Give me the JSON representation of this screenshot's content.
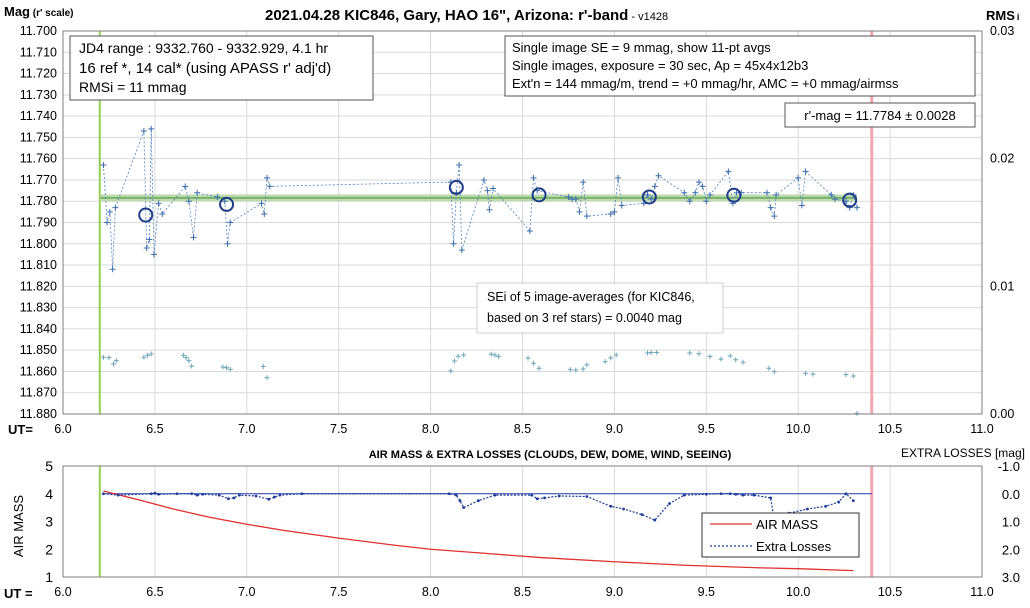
{
  "top": {
    "title_main": "2021.04.28 KIC846, Gary, HAO 16\", Arizona: r'-band",
    "title_suffix": " - v1428",
    "ylabel_left_main": "Mag",
    "ylabel_left_sub": " (r' scale)",
    "ylabel_right_main": "RMS",
    "ylabel_right_sub": "i",
    "xlabel": "UT=",
    "box_left": [
      "JD4 range : 9332.760 - 9332.929,  4.1  hr",
      "16 ref *, 14 cal* (using APASS r' adj'd)",
      "RMSi = 11 mmag"
    ],
    "box_right": [
      "Single image SE = 9 mmag, show  11-pt avgs",
      "Single images, exposure = 30 sec, Ap = 45x4x12b3",
      "Ext'n = 144 mmag/m, trend =  +0 mmag/hr, AMC = +0 mmag/airmss"
    ],
    "box_mag": "r'-mag = 11.7784 ± 0.0028",
    "box_sei": [
      "SEi of 5 image-averages (for KIC846,",
      "based on 3 ref stars) = 0.0040 mag"
    ]
  },
  "bottom": {
    "title": "AIR MASS & EXTRA LOSSES (CLOUDS, DEW, DOME, WIND, SEEING)",
    "ylabel_left": "AIR MASS",
    "ylabel_right": "EXTRA LOSSES [mag]",
    "xlabel": "UT ="
  },
  "colors": {
    "points": "#4f81bd",
    "avg": "#1f3c88",
    "mean_line": "#77b36a",
    "start_line": "#92d050",
    "end_line": "#f4a7b0",
    "airmass": "#e03030",
    "losses": "#1f3c9c",
    "rms_points": "#70a6b8",
    "grid": "#d9d9d9"
  },
  "chart_data": [
    {
      "type": "scatter",
      "title": "2021.04.28 KIC846, Gary, HAO 16\", Arizona: r'-band",
      "xlabel": "UT=",
      "ylabel": "Mag (r' scale)",
      "y2label": "RMSi",
      "xlim": [
        6.0,
        11.0
      ],
      "ylim": [
        11.88,
        11.7
      ],
      "y2lim": [
        0.0,
        0.03
      ],
      "xticks": [
        "6.0",
        "6.5",
        "7.0",
        "7.5",
        "8.0",
        "8.5",
        "9.0",
        "9.5",
        "10.0",
        "10.5",
        "11.0"
      ],
      "yticks": [
        "11.700",
        "11.710",
        "11.720",
        "11.730",
        "11.740",
        "11.750",
        "11.760",
        "11.770",
        "11.780",
        "11.790",
        "11.800",
        "11.810",
        "11.820",
        "11.830",
        "11.840",
        "11.850",
        "11.860",
        "11.870",
        "11.880"
      ],
      "y2ticks": [
        "0.03",
        "0.02",
        "0.01",
        "0.00"
      ],
      "start_ut": 6.2,
      "end_ut": 10.4,
      "mean_mag": 11.7784,
      "series": [
        {
          "name": "single images",
          "points": [
            [
              6.22,
              11.763
            ],
            [
              6.24,
              11.79
            ],
            [
              6.255,
              11.785
            ],
            [
              6.27,
              11.812
            ],
            [
              6.285,
              11.783
            ],
            [
              6.44,
              11.747
            ],
            [
              6.455,
              11.802
            ],
            [
              6.47,
              11.798
            ],
            [
              6.48,
              11.746
            ],
            [
              6.495,
              11.805
            ],
            [
              6.52,
              11.781
            ],
            [
              6.54,
              11.786
            ],
            [
              6.665,
              11.773
            ],
            [
              6.685,
              11.78
            ],
            [
              6.71,
              11.797
            ],
            [
              6.73,
              11.776
            ],
            [
              6.84,
              11.778
            ],
            [
              6.88,
              11.78
            ],
            [
              6.895,
              11.8
            ],
            [
              6.91,
              11.79
            ],
            [
              7.08,
              11.781
            ],
            [
              7.095,
              11.786
            ],
            [
              7.11,
              11.769
            ],
            [
              7.125,
              11.773
            ],
            [
              8.11,
              11.771
            ],
            [
              8.125,
              11.8
            ],
            [
              8.14,
              11.776
            ],
            [
              8.155,
              11.763
            ],
            [
              8.17,
              11.803
            ],
            [
              8.29,
              11.77
            ],
            [
              8.31,
              11.775
            ],
            [
              8.32,
              11.784
            ],
            [
              8.34,
              11.774
            ],
            [
              8.54,
              11.794
            ],
            [
              8.56,
              11.769
            ],
            [
              8.58,
              11.775
            ],
            [
              8.75,
              11.778
            ],
            [
              8.77,
              11.779
            ],
            [
              8.79,
              11.779
            ],
            [
              8.81,
              11.785
            ],
            [
              8.83,
              11.771
            ],
            [
              8.85,
              11.787
            ],
            [
              8.98,
              11.786
            ],
            [
              9.0,
              11.785
            ],
            [
              9.02,
              11.769
            ],
            [
              9.04,
              11.782
            ],
            [
              9.16,
              11.781
            ],
            [
              9.18,
              11.777
            ],
            [
              9.2,
              11.779
            ],
            [
              9.22,
              11.773
            ],
            [
              9.24,
              11.768
            ],
            [
              9.38,
              11.776
            ],
            [
              9.41,
              11.78
            ],
            [
              9.44,
              11.776
            ],
            [
              9.46,
              11.771
            ],
            [
              9.48,
              11.773
            ],
            [
              9.5,
              11.78
            ],
            [
              9.52,
              11.777
            ],
            [
              9.62,
              11.766
            ],
            [
              9.645,
              11.781
            ],
            [
              9.665,
              11.776
            ],
            [
              9.69,
              11.776
            ],
            [
              9.83,
              11.776
            ],
            [
              9.85,
              11.783
            ],
            [
              9.87,
              11.787
            ],
            [
              9.88,
              11.777
            ],
            [
              10.0,
              11.769
            ],
            [
              10.02,
              11.782
            ],
            [
              10.04,
              11.766
            ],
            [
              10.18,
              11.777
            ],
            [
              10.2,
              11.779
            ],
            [
              10.26,
              11.78
            ],
            [
              10.28,
              11.783
            ],
            [
              10.3,
              11.777
            ],
            [
              10.32,
              11.783
            ]
          ]
        },
        {
          "name": "11-pt avgs",
          "points": [
            [
              6.45,
              11.7865
            ],
            [
              6.89,
              11.7815
            ],
            [
              8.14,
              11.7735
            ],
            [
              8.59,
              11.777
            ],
            [
              9.19,
              11.778
            ],
            [
              9.65,
              11.7772
            ],
            [
              10.28,
              11.7795
            ]
          ]
        },
        {
          "name": "RMSi",
          "points": [
            [
              6.22,
              0.00445
            ],
            [
              6.25,
              0.00442
            ],
            [
              6.275,
              0.00392
            ],
            [
              6.29,
              0.00418
            ],
            [
              6.44,
              0.00445
            ],
            [
              6.46,
              0.0046
            ],
            [
              6.48,
              0.0047
            ],
            [
              6.655,
              0.0046
            ],
            [
              6.67,
              0.00442
            ],
            [
              6.685,
              0.00418
            ],
            [
              6.7,
              0.00375
            ],
            [
              6.87,
              0.00368
            ],
            [
              6.89,
              0.00362
            ],
            [
              6.91,
              0.0035
            ],
            [
              7.09,
              0.00372
            ],
            [
              7.11,
              0.00285
            ],
            [
              8.11,
              0.00338
            ],
            [
              8.13,
              0.00415
            ],
            [
              8.15,
              0.00452
            ],
            [
              8.18,
              0.00462
            ],
            [
              8.33,
              0.00468
            ],
            [
              8.35,
              0.00462
            ],
            [
              8.37,
              0.0045
            ],
            [
              8.53,
              0.00438
            ],
            [
              8.56,
              0.00398
            ],
            [
              8.59,
              0.00358
            ],
            [
              8.76,
              0.00348
            ],
            [
              8.79,
              0.00345
            ],
            [
              8.83,
              0.00352
            ],
            [
              8.85,
              0.00385
            ],
            [
              8.95,
              0.0041
            ],
            [
              8.98,
              0.0044
            ],
            [
              9.01,
              0.00462
            ],
            [
              9.18,
              0.00478
            ],
            [
              9.2,
              0.00482
            ],
            [
              9.23,
              0.00482
            ],
            [
              9.41,
              0.00478
            ],
            [
              9.46,
              0.00472
            ],
            [
              9.52,
              0.0045
            ],
            [
              9.58,
              0.0043
            ],
            [
              9.63,
              0.00455
            ],
            [
              9.66,
              0.00425
            ],
            [
              9.7,
              0.00405
            ],
            [
              9.84,
              0.00358
            ],
            [
              9.87,
              0.00332
            ],
            [
              10.04,
              0.00318
            ],
            [
              10.08,
              0.00312
            ],
            [
              10.26,
              0.00308
            ],
            [
              10.3,
              0.00298
            ],
            [
              10.32,
              5e-05
            ]
          ]
        }
      ]
    },
    {
      "type": "line",
      "title": "AIR MASS & EXTRA LOSSES (CLOUDS, DEW, DOME, WIND, SEEING)",
      "xlabel": "UT =",
      "ylabel": "AIR MASS",
      "y2label": "EXTRA LOSSES [mag]",
      "xlim": [
        6.0,
        11.0
      ],
      "ylim": [
        1,
        5
      ],
      "y2lim": [
        3.0,
        -1.0
      ],
      "xticks": [
        "6.0",
        "6.5",
        "7.0",
        "7.5",
        "8.0",
        "8.5",
        "9.0",
        "9.5",
        "10.0",
        "10.5",
        "11.0"
      ],
      "yticks": [
        "1",
        "2",
        "3",
        "4",
        "5"
      ],
      "y2ticks": [
        "-1.0",
        "0.0",
        "1.0",
        "2.0",
        "3.0"
      ],
      "legend": "bottom-right",
      "series": [
        {
          "name": "AIR MASS",
          "x": [
            6.22,
            6.4,
            6.6,
            6.8,
            7.0,
            7.2,
            7.5,
            7.8,
            8.0,
            8.3,
            8.6,
            9.0,
            9.4,
            9.8,
            10.0,
            10.3
          ],
          "values": [
            4.1,
            3.8,
            3.45,
            3.15,
            2.9,
            2.68,
            2.4,
            2.15,
            2.0,
            1.85,
            1.7,
            1.55,
            1.42,
            1.33,
            1.3,
            1.23
          ]
        },
        {
          "name": "Extra Losses",
          "x": [
            6.22,
            6.3,
            6.48,
            6.5,
            6.52,
            6.62,
            6.7,
            6.73,
            6.76,
            6.85,
            6.9,
            6.93,
            6.96,
            7.05,
            7.12,
            7.15,
            7.18,
            7.3,
            8.1,
            8.14,
            8.16,
            8.18,
            8.26,
            8.35,
            8.55,
            8.58,
            8.62,
            8.7,
            8.85,
            8.98,
            9.05,
            9.15,
            9.22,
            9.3,
            9.38,
            9.5,
            9.58,
            9.63,
            9.66,
            9.7,
            9.76,
            9.85,
            9.87,
            9.95,
            10.05,
            10.15,
            10.22,
            10.26,
            10.3
          ],
          "values": [
            0.0,
            0.05,
            0.0,
            -0.02,
            0.02,
            0.0,
            0.0,
            0.05,
            0.02,
            0.05,
            0.18,
            0.15,
            0.05,
            0.08,
            0.2,
            0.12,
            0.05,
            0.0,
            0.0,
            0.05,
            0.25,
            0.5,
            0.25,
            0.05,
            0.05,
            0.18,
            0.15,
            0.08,
            0.1,
            0.45,
            0.55,
            0.75,
            0.95,
            0.35,
            0.05,
            0.02,
            0.0,
            0.0,
            0.02,
            0.05,
            0.05,
            0.15,
            0.95,
            0.7,
            0.55,
            0.45,
            0.3,
            0.0,
            0.25
          ]
        }
      ]
    }
  ]
}
